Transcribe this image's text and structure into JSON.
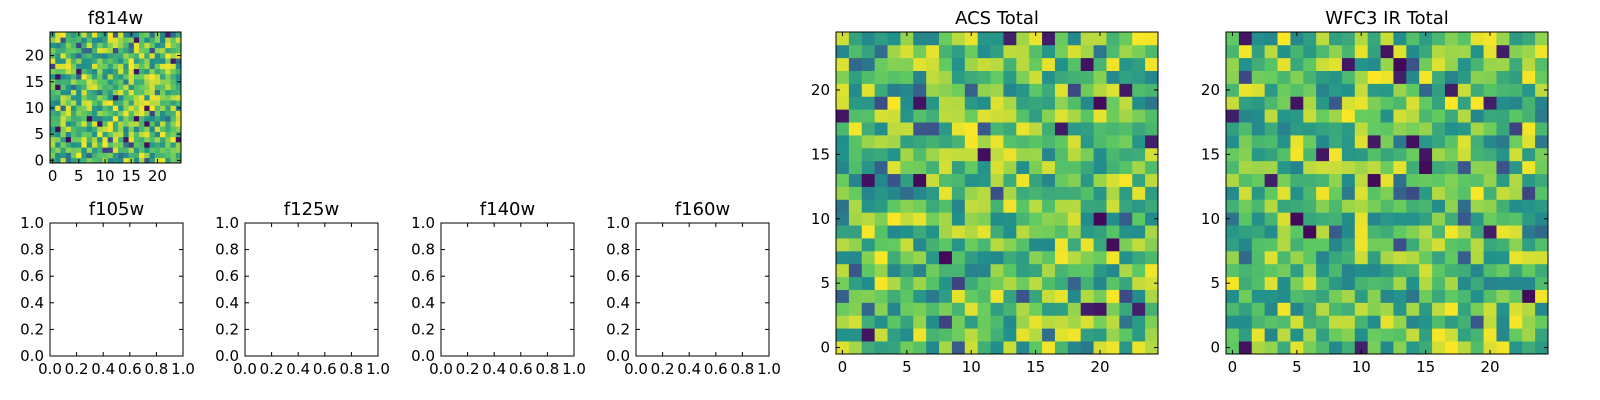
{
  "colormap": [
    "#440154",
    "#3b528b",
    "#21918c",
    "#5ec962",
    "#fde725"
  ],
  "chart_data": [
    {
      "type": "heatmap",
      "title": "f814w",
      "xlabel": "",
      "ylabel": "",
      "size": 25,
      "xlim": [
        -0.5,
        24.5
      ],
      "ylim": [
        -0.5,
        24.5
      ],
      "xticks": [
        "0",
        "5",
        "10",
        "15",
        "20"
      ],
      "yticks": [
        "0",
        "5",
        "10",
        "15",
        "20"
      ],
      "seed": 11,
      "grid": false
    },
    {
      "type": "empty",
      "title": "f105w",
      "xlabel": "",
      "ylabel": "",
      "xlim": [
        0,
        1
      ],
      "ylim": [
        0,
        1
      ],
      "xticks": [
        "0.0",
        "0.2",
        "0.4",
        "0.6",
        "0.8",
        "1.0"
      ],
      "yticks": [
        "0.0",
        "0.2",
        "0.4",
        "0.6",
        "0.8",
        "1.0"
      ]
    },
    {
      "type": "empty",
      "title": "f125w",
      "xlabel": "",
      "ylabel": "",
      "xlim": [
        0,
        1
      ],
      "ylim": [
        0,
        1
      ],
      "xticks": [
        "0.0",
        "0.2",
        "0.4",
        "0.6",
        "0.8",
        "1.0"
      ],
      "yticks": [
        "0.0",
        "0.2",
        "0.4",
        "0.6",
        "0.8",
        "1.0"
      ]
    },
    {
      "type": "empty",
      "title": "f140w",
      "xlabel": "",
      "ylabel": "",
      "xlim": [
        0,
        1
      ],
      "ylim": [
        0,
        1
      ],
      "xticks": [
        "0.0",
        "0.2",
        "0.4",
        "0.6",
        "0.8",
        "1.0"
      ],
      "yticks": [
        "0.0",
        "0.2",
        "0.4",
        "0.6",
        "0.8",
        "1.0"
      ]
    },
    {
      "type": "empty",
      "title": "f160w",
      "xlabel": "",
      "ylabel": "",
      "xlim": [
        0,
        1
      ],
      "ylim": [
        0,
        1
      ],
      "xticks": [
        "0.0",
        "0.2",
        "0.4",
        "0.6",
        "0.8",
        "1.0"
      ],
      "yticks": [
        "0.0",
        "0.2",
        "0.4",
        "0.6",
        "0.8",
        "1.0"
      ]
    },
    {
      "type": "heatmap",
      "title": "ACS Total",
      "xlabel": "",
      "ylabel": "",
      "size": 25,
      "xlim": [
        -0.5,
        24.5
      ],
      "ylim": [
        -0.5,
        24.5
      ],
      "xticks": [
        "0",
        "5",
        "10",
        "15",
        "20"
      ],
      "yticks": [
        "0",
        "5",
        "10",
        "15",
        "20"
      ],
      "seed": 29,
      "grid": false
    },
    {
      "type": "heatmap",
      "title": "WFC3 IR Total",
      "xlabel": "",
      "ylabel": "",
      "size": 25,
      "xlim": [
        -0.5,
        24.5
      ],
      "ylim": [
        -0.5,
        24.5
      ],
      "xticks": [
        "0",
        "5",
        "10",
        "15",
        "20"
      ],
      "yticks": [
        "0",
        "5",
        "10",
        "15",
        "20"
      ],
      "seed": 47,
      "grid": false
    }
  ]
}
